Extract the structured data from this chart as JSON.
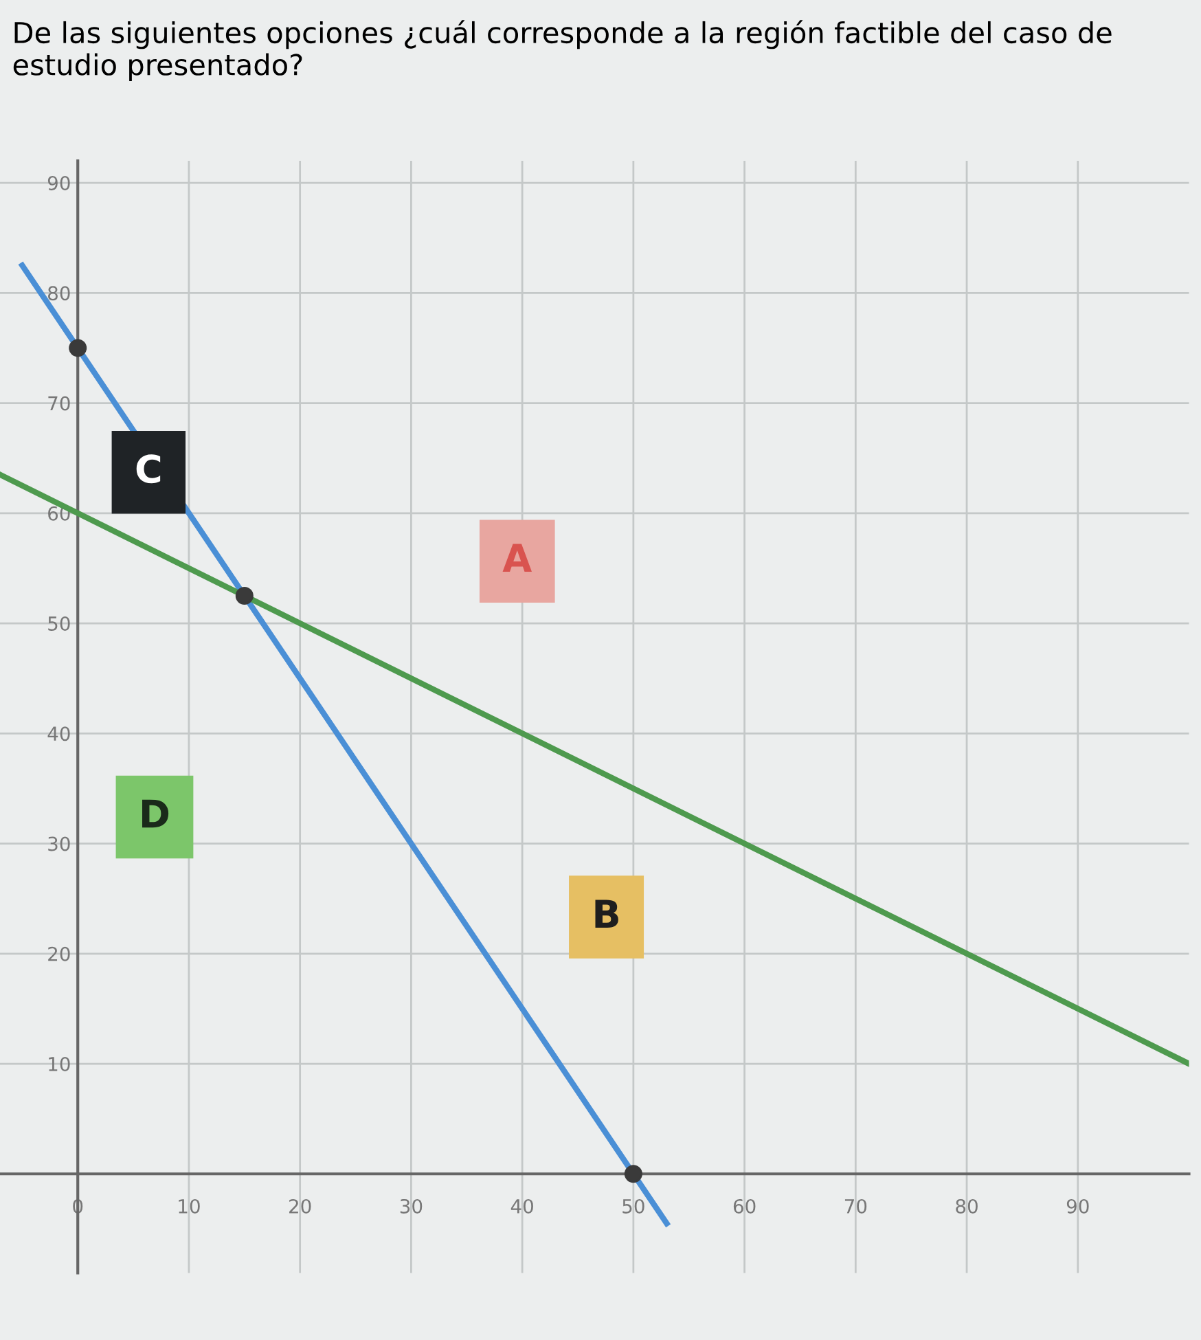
{
  "chart_data": {
    "type": "line",
    "title": "De las siguientes opciones ¿cuál corresponde a la región factible del caso de estudio presentado?",
    "series": [
      {
        "color": "#4a8fd6",
        "x": [
          -5,
          53
        ],
        "values": [
          82.5,
          -4.5
        ]
      },
      {
        "color": "#4e9a4e",
        "x": [
          -7,
          100
        ],
        "values": [
          63.5,
          10
        ]
      },
      {
        "type": "scatter",
        "color": "#3a3a3a",
        "x": [
          0,
          15,
          50
        ],
        "values": [
          75,
          52.5,
          0
        ],
        "marker": "circle"
      }
    ],
    "annotations": [
      "C",
      "A",
      "D",
      "B"
    ],
    "xlim": [
      -7,
      100
    ],
    "xticks": [
      0,
      10,
      20,
      30,
      40,
      50,
      60,
      70,
      80,
      90
    ],
    "ylim": [
      -9,
      92
    ],
    "yticks": [
      {
        "value": 0,
        "label": null
      },
      10,
      20,
      30,
      40,
      50,
      60,
      70,
      80,
      90
    ],
    "grid": true
  }
}
